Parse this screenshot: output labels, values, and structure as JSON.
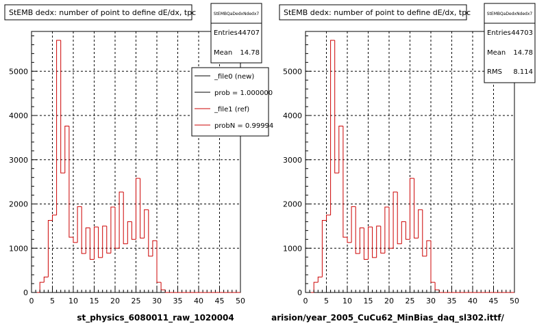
{
  "chart_data": [
    {
      "type": "histogram",
      "title": "StEMB dedx: number of point to define dE/dx, tpc",
      "xlabel": "st_physics_6080011_raw_1020004",
      "xlim": [
        0,
        50
      ],
      "ylim": [
        0,
        5900
      ],
      "xticks": [
        0,
        5,
        10,
        15,
        20,
        25,
        30,
        35,
        40,
        45,
        50
      ],
      "yticks": [
        0,
        1000,
        2000,
        3000,
        4000,
        5000
      ],
      "grid": true,
      "stats_box": {
        "name": "StEMBQaDedxNdedx7",
        "rows": [
          {
            "label": "Entries",
            "value": "44707"
          },
          {
            "label": "Mean",
            "value": "14.78"
          }
        ]
      },
      "legend": {
        "placement": "top-right",
        "entries": [
          {
            "label": "_file0 (new)",
            "color": "#000000"
          },
          {
            "label": "prob = 1.000000",
            "color": "#000000"
          },
          {
            "label": "_file1 (ref)",
            "color": "#cc0000"
          },
          {
            "label": "probN = 0.99994",
            "color": "#cc0000"
          }
        ]
      },
      "series": [
        {
          "name": "_file1 (ref)",
          "color": "#cc0000",
          "bin_width": 1,
          "bin_edges_start": 0,
          "values": [
            0,
            0,
            230,
            350,
            1630,
            1750,
            5700,
            2700,
            3760,
            1250,
            1130,
            1940,
            880,
            1460,
            750,
            1480,
            790,
            1500,
            890,
            1930,
            1000,
            2270,
            1100,
            1600,
            1200,
            2580,
            1230,
            1870,
            820,
            1170,
            230,
            60,
            0,
            0,
            0,
            0,
            0,
            0,
            0,
            0,
            0,
            0,
            0,
            0,
            0,
            0,
            0,
            0,
            0,
            0
          ]
        }
      ]
    },
    {
      "type": "histogram",
      "title": "StEMB dedx: number of point to define dE/dx, tpc",
      "xlabel": "arision/year_2005_CuCu62_MinBias_daq_sl302.ittf/",
      "xlim": [
        0,
        50
      ],
      "ylim": [
        0,
        5900
      ],
      "xticks": [
        0,
        5,
        10,
        15,
        20,
        25,
        30,
        35,
        40,
        45,
        50
      ],
      "yticks": [
        0,
        1000,
        2000,
        3000,
        4000,
        5000
      ],
      "grid": true,
      "stats_box": {
        "name": "StEMBQaDedxNdedx7",
        "rows": [
          {
            "label": "Entries",
            "value": "44703"
          },
          {
            "label": "Mean",
            "value": "14.78"
          },
          {
            "label": "RMS",
            "value": "8.114"
          }
        ]
      },
      "series": [
        {
          "name": "",
          "color": "#cc0000",
          "bin_width": 1,
          "bin_edges_start": 0,
          "values": [
            0,
            0,
            230,
            350,
            1630,
            1750,
            5700,
            2700,
            3760,
            1250,
            1130,
            1940,
            880,
            1460,
            750,
            1480,
            790,
            1500,
            890,
            1930,
            1000,
            2270,
            1100,
            1600,
            1200,
            2580,
            1230,
            1870,
            820,
            1170,
            230,
            60,
            0,
            0,
            0,
            0,
            0,
            0,
            0,
            0,
            0,
            0,
            0,
            0,
            0,
            0,
            0,
            0,
            0,
            0
          ]
        }
      ]
    }
  ]
}
